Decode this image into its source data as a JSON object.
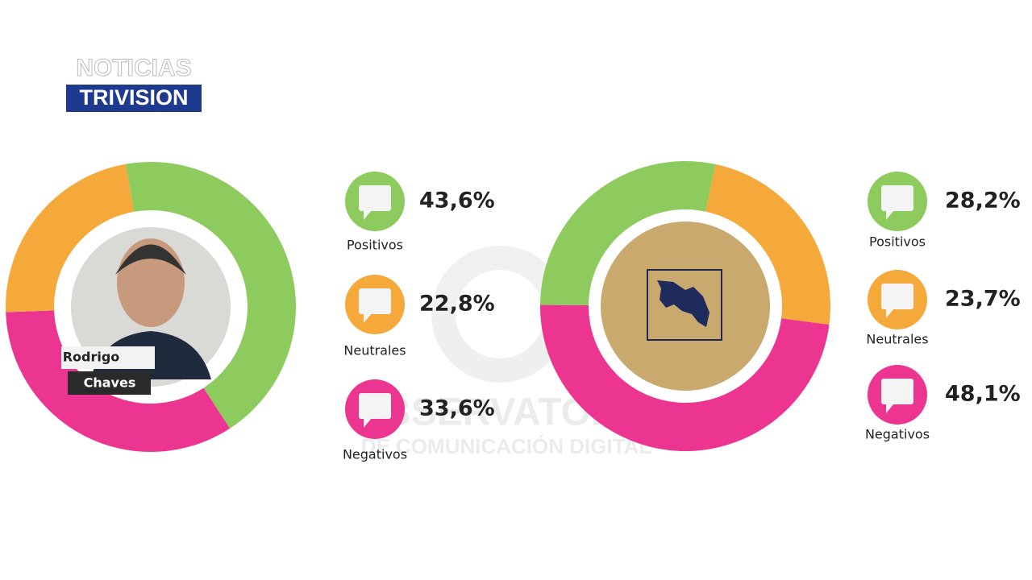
{
  "header": {
    "logo_top": "NOTICIAS",
    "logo_bottom": "TRIVISION"
  },
  "watermark": {
    "line1": "OBSERVATORIO",
    "line2": "DE COMUNICACIÓN DIGITAL"
  },
  "chart_data": [
    {
      "type": "pie",
      "categories": [
        "Positivos",
        "Neutrales",
        "Negativos"
      ],
      "values": [
        43.6,
        22.8,
        33.6
      ],
      "value_labels": [
        "43,6%",
        "22,8%",
        "33,6%"
      ],
      "colors": [
        "#8dcb5f",
        "#f5a93b",
        "#ec3591"
      ],
      "center_label": [
        "Rodrigo",
        "Chaves"
      ]
    },
    {
      "type": "pie",
      "categories": [
        "Positivos",
        "Neutrales",
        "Negativos"
      ],
      "values": [
        28.2,
        23.7,
        48.1
      ],
      "value_labels": [
        "28,2%",
        "23,7%",
        "48,1%"
      ],
      "colors": [
        "#8dcb5f",
        "#f5a93b",
        "#ec3591"
      ]
    }
  ]
}
